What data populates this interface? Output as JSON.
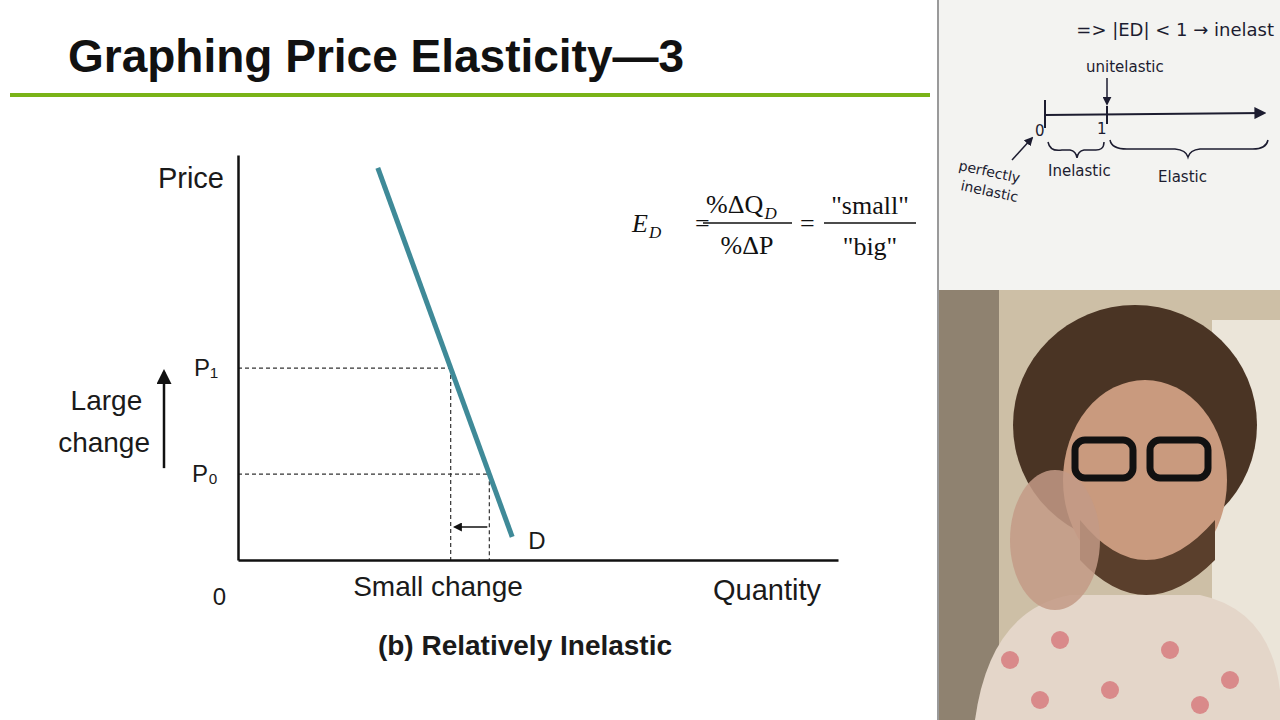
{
  "chart_data": {
    "type": "line",
    "title": "Graphing Price Elasticity—3",
    "subtitle": "(b) Relatively Inelastic",
    "x_label": "Quantity",
    "y_label": "Price",
    "series": [
      {
        "name": "D",
        "color": "#3f8a98",
        "x": [
          23.3,
          45.7
        ],
        "values": [
          96.8,
          5.7
        ]
      }
    ],
    "xlim": [
      0,
      100
    ],
    "ylim": [
      0,
      100
    ],
    "xticks": [
      {
        "value": 0,
        "label": "0"
      }
    ],
    "yticks": [
      {
        "value": 21.2,
        "label": "P₀"
      },
      {
        "value": 47.4,
        "label": "P₁"
      }
    ],
    "grid": false,
    "annotations": [
      {
        "text": "Large change"
      },
      {
        "text": "Small change"
      }
    ],
    "formula": {
      "lhs": "E",
      "lhs_sub": "D",
      "eq": "=",
      "num": "%ΔQ",
      "num_sub": "D",
      "den": "%ΔP",
      "rhs_num": "\"small\"",
      "rhs_den": "\"big\""
    }
  },
  "whiteboard": {
    "lines": [
      "=> |ED| < 1 → inelast",
      "unitelastic",
      "0",
      "1",
      "perfectly",
      "inelastic",
      "Inelastic",
      "Elastic"
    ]
  }
}
